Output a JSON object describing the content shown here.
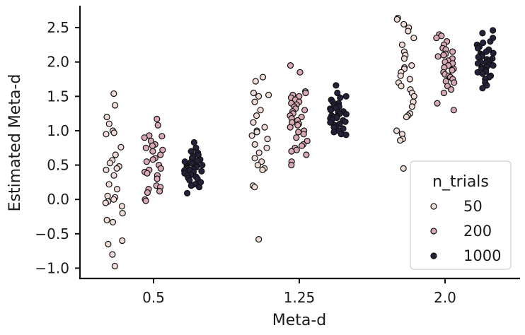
{
  "chart_data": {
    "type": "scatter",
    "title": "",
    "xlabel": "Meta-d",
    "ylabel": "Estimated Meta-d",
    "categories": [
      "0.5",
      "1.25",
      "2.0"
    ],
    "ylim": [
      -1.15,
      2.82
    ],
    "yticks": [
      -1.0,
      -0.5,
      0.0,
      0.5,
      1.0,
      1.5,
      2.0,
      2.5
    ],
    "ytick_labels": [
      "−1.0",
      "−0.5",
      "0.0",
      "0.5",
      "1.0",
      "1.5",
      "2.0",
      "2.5"
    ],
    "grid": false,
    "legend": {
      "title": "n_trials",
      "position": "bottom-right"
    },
    "series": [
      {
        "name": "50",
        "color": "#efdcd6",
        "values": [
          [
            1.54,
            1.37,
            1.2,
            1.1,
            1.0,
            0.97,
            0.95,
            0.76,
            0.65,
            0.57,
            0.53,
            0.48,
            0.45,
            0.43,
            0.35,
            0.22,
            0.15,
            0.05,
            0.03,
            0.0,
            -0.03,
            -0.05,
            -0.1,
            -0.2,
            -0.3,
            -0.33,
            -0.6,
            -0.65,
            -0.8,
            -0.97
          ],
          [
            1.78,
            1.72,
            1.55,
            1.52,
            1.5,
            1.42,
            1.3,
            1.22,
            1.12,
            1.05,
            1.0,
            0.98,
            0.93,
            0.88,
            0.8,
            0.75,
            0.68,
            0.6,
            0.55,
            0.5,
            0.45,
            0.43,
            0.2,
            0.18,
            -0.58
          ],
          [
            2.64,
            2.62,
            2.55,
            2.5,
            2.45,
            2.35,
            2.25,
            2.15,
            2.1,
            2.05,
            1.95,
            1.92,
            1.9,
            1.85,
            1.8,
            1.75,
            1.7,
            1.65,
            1.6,
            1.55,
            1.5,
            1.42,
            1.35,
            1.25,
            1.22,
            1.2,
            1.0,
            0.95,
            0.88,
            0.86,
            0.45
          ]
        ]
      },
      {
        "name": "200",
        "color": "#d9a9b3",
        "values": [
          [
            1.17,
            1.08,
            0.93,
            0.92,
            0.9,
            0.85,
            0.8,
            0.78,
            0.75,
            0.72,
            0.7,
            0.65,
            0.6,
            0.58,
            0.55,
            0.5,
            0.45,
            0.43,
            0.4,
            0.38,
            0.35,
            0.3,
            0.2,
            0.18,
            0.15,
            0.12,
            0.1,
            0.0,
            -0.02
          ],
          [
            1.95,
            1.85,
            1.57,
            1.55,
            1.52,
            1.5,
            1.48,
            1.45,
            1.42,
            1.4,
            1.38,
            1.35,
            1.32,
            1.3,
            1.28,
            1.25,
            1.22,
            1.2,
            1.18,
            1.15,
            1.12,
            1.1,
            1.08,
            1.05,
            1.0,
            0.98,
            0.95,
            0.9,
            0.85,
            0.8,
            0.78,
            0.75,
            0.72,
            0.7,
            0.65,
            0.55,
            0.5
          ],
          [
            2.4,
            2.38,
            2.35,
            2.3,
            2.25,
            2.2,
            2.18,
            2.15,
            2.12,
            2.1,
            2.08,
            2.05,
            2.02,
            2.0,
            1.98,
            1.95,
            1.92,
            1.9,
            1.88,
            1.85,
            1.82,
            1.8,
            1.78,
            1.75,
            1.72,
            1.7,
            1.65,
            1.6,
            1.55,
            1.4,
            1.3
          ]
        ]
      },
      {
        "name": "1000",
        "color": "#26203a",
        "values": [
          [
            0.83,
            0.75,
            0.7,
            0.68,
            0.65,
            0.63,
            0.6,
            0.58,
            0.56,
            0.55,
            0.54,
            0.52,
            0.5,
            0.49,
            0.48,
            0.47,
            0.46,
            0.45,
            0.44,
            0.43,
            0.42,
            0.41,
            0.4,
            0.38,
            0.36,
            0.35,
            0.33,
            0.31,
            0.3,
            0.28,
            0.25,
            0.22,
            0.2,
            0.18,
            0.09
          ],
          [
            1.66,
            1.55,
            1.5,
            1.48,
            1.45,
            1.42,
            1.4,
            1.38,
            1.36,
            1.35,
            1.33,
            1.32,
            1.3,
            1.28,
            1.27,
            1.25,
            1.24,
            1.22,
            1.21,
            1.2,
            1.19,
            1.18,
            1.16,
            1.15,
            1.13,
            1.12,
            1.1,
            1.08,
            1.06,
            1.05,
            1.03,
            1.0,
            0.98,
            0.95,
            0.94
          ],
          [
            2.46,
            2.42,
            2.35,
            2.3,
            2.28,
            2.25,
            2.22,
            2.2,
            2.18,
            2.15,
            2.13,
            2.12,
            2.1,
            2.08,
            2.07,
            2.05,
            2.04,
            2.02,
            2.01,
            2.0,
            1.99,
            1.98,
            1.96,
            1.95,
            1.93,
            1.92,
            1.9,
            1.88,
            1.86,
            1.85,
            1.83,
            1.8,
            1.78,
            1.75,
            1.7,
            1.66,
            1.62
          ]
        ]
      }
    ]
  }
}
